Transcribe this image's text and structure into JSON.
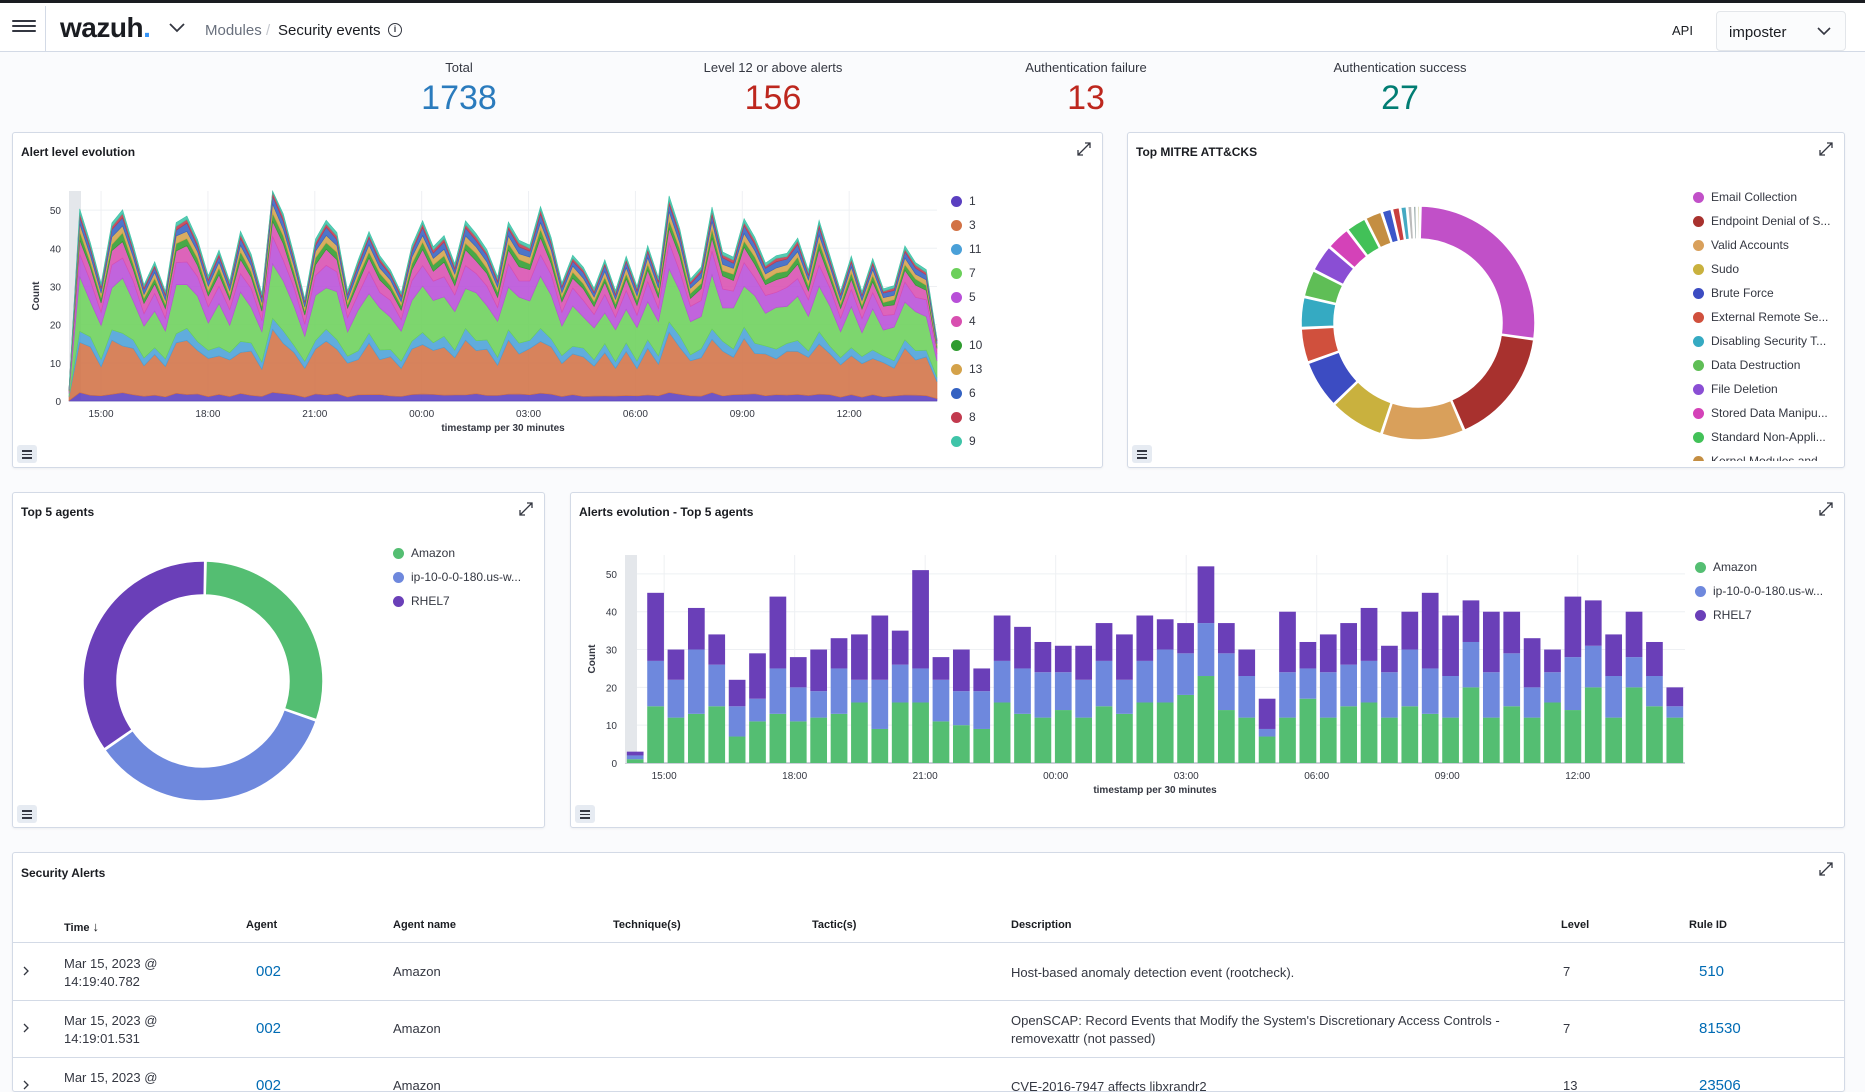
{
  "header": {
    "logo": "wazuh",
    "logo_dot": ".",
    "breadcrumb_modules": "Modules",
    "breadcrumb_sep": "/",
    "breadcrumb_current": "Security events",
    "info_glyph": "i",
    "api_label": "API",
    "api_value": "imposter"
  },
  "stats": [
    {
      "label": "Total",
      "value": "1738",
      "color": "#2a7bbd"
    },
    {
      "label": "Level 12 or above alerts",
      "value": "156",
      "color": "#bd271e"
    },
    {
      "label": "Authentication failure",
      "value": "13",
      "color": "#bd271e"
    },
    {
      "label": "Authentication success",
      "value": "27",
      "color": "#017d73"
    }
  ],
  "panels": {
    "alert_level": {
      "title": "Alert level evolution"
    },
    "mitre": {
      "title": "Top MITRE ATT&CKS"
    },
    "top_agents": {
      "title": "Top 5 agents"
    },
    "agents_evolution": {
      "title": "Alerts evolution - Top 5 agents"
    },
    "security_alerts": {
      "title": "Security Alerts"
    }
  },
  "chart_data": [
    {
      "type": "area",
      "title": "Alert level evolution",
      "xlabel": "timestamp per 30 minutes",
      "ylabel": "Count",
      "ylim": [
        0,
        55
      ],
      "x_ticks": [
        "15:00",
        "18:00",
        "21:00",
        "00:00",
        "03:00",
        "06:00",
        "09:00",
        "12:00"
      ],
      "y_ticks": [
        0,
        10,
        20,
        30,
        40,
        50
      ],
      "legend_position": "right",
      "series": [
        {
          "name": "1",
          "color": "#5a3fc0"
        },
        {
          "name": "3",
          "color": "#d27245"
        },
        {
          "name": "11",
          "color": "#4aa0d8"
        },
        {
          "name": "7",
          "color": "#6bd05a"
        },
        {
          "name": "5",
          "color": "#b84fd8"
        },
        {
          "name": "4",
          "color": "#d84fb0"
        },
        {
          "name": "10",
          "color": "#2f9c2f"
        },
        {
          "name": "13",
          "color": "#d4a24a"
        },
        {
          "name": "6",
          "color": "#3462c2"
        },
        {
          "name": "8",
          "color": "#c23a4e"
        },
        {
          "name": "9",
          "color": "#3fc4a8"
        }
      ],
      "totals": [
        3,
        48,
        40,
        30,
        44,
        50,
        38,
        30,
        34,
        28,
        44,
        47,
        40,
        32,
        38,
        30,
        44,
        36,
        28,
        52,
        48,
        36,
        26,
        40,
        46,
        42,
        28,
        36,
        42,
        38,
        32,
        28,
        38,
        46,
        38,
        42,
        34,
        46,
        42,
        38,
        32,
        44,
        42,
        38,
        50,
        40,
        30,
        36,
        34,
        28,
        36,
        28,
        36,
        30,
        38,
        32,
        50,
        44,
        30,
        34,
        48,
        38,
        36,
        46,
        42,
        34,
        38,
        36,
        42,
        32,
        46,
        36,
        28,
        36,
        28,
        36,
        28,
        30,
        38,
        36,
        32,
        16
      ]
    },
    {
      "type": "pie",
      "title": "Top MITRE ATT&CKS",
      "legend_position": "right",
      "slices": [
        {
          "name": "Email Collection",
          "value": 28,
          "color": "#c150c8"
        },
        {
          "name": "Endpoint Denial of S...",
          "value": 17,
          "color": "#a8312e"
        },
        {
          "name": "Valid Accounts",
          "value": 12,
          "color": "#d9a05b"
        },
        {
          "name": "Sudo",
          "value": 8,
          "color": "#c9b13e"
        },
        {
          "name": "Brute Force",
          "value": 7,
          "color": "#3c4cc2"
        },
        {
          "name": "External Remote Se...",
          "value": 5,
          "color": "#d0503d"
        },
        {
          "name": "Disabling Security T...",
          "value": 4.5,
          "color": "#35aac2"
        },
        {
          "name": "Data Destruction",
          "value": 4,
          "color": "#5fbe56"
        },
        {
          "name": "File Deletion",
          "value": 4,
          "color": "#8a4ed4"
        },
        {
          "name": "Stored Data Manipu...",
          "value": 3.5,
          "color": "#d442b8"
        },
        {
          "name": "Standard Non-Appli...",
          "value": 3,
          "color": "#42c158"
        },
        {
          "name": "Kernel Modules and...",
          "value": 2.5,
          "color": "#c48e42"
        },
        {
          "name": "",
          "value": 1.5,
          "color": "#3b57c9"
        },
        {
          "name": "",
          "value": 1.2,
          "color": "#c84040"
        },
        {
          "name": "",
          "value": 1,
          "color": "#44a9c2"
        },
        {
          "name": "",
          "value": 0.8,
          "color": "#bbb"
        },
        {
          "name": "",
          "value": 0.6,
          "color": "#9aa"
        },
        {
          "name": "",
          "value": 0.5,
          "color": "#cc9"
        }
      ]
    },
    {
      "type": "pie",
      "title": "Top 5 agents",
      "legend_position": "right",
      "slices": [
        {
          "name": "Amazon",
          "value": 30,
          "color": "#54be72"
        },
        {
          "name": "ip-10-0-0-180.us-w...",
          "value": 35,
          "color": "#6e88dd"
        },
        {
          "name": "RHEL7",
          "value": 35,
          "color": "#6a3fb8"
        }
      ]
    },
    {
      "type": "bar",
      "title": "Alerts evolution - Top 5 agents",
      "xlabel": "timestamp per 30 minutes",
      "ylabel": "Count",
      "ylim": [
        0,
        55
      ],
      "x_ticks": [
        "15:00",
        "18:00",
        "21:00",
        "00:00",
        "03:00",
        "06:00",
        "09:00",
        "12:00"
      ],
      "y_ticks": [
        0,
        10,
        20,
        30,
        40,
        50
      ],
      "legend_position": "right",
      "series": [
        {
          "name": "Amazon",
          "color": "#54be72",
          "values": [
            1,
            15,
            12,
            13,
            15,
            7,
            11,
            13,
            11,
            12,
            13,
            16,
            9,
            16,
            16,
            11,
            10,
            9,
            16,
            13,
            12,
            14,
            12,
            15,
            13,
            16,
            16,
            18,
            23,
            14,
            12,
            7,
            12,
            17,
            12,
            15,
            16,
            12,
            15,
            13,
            12,
            20,
            12,
            15,
            12,
            16,
            14,
            20,
            12,
            20,
            15,
            12
          ]
        },
        {
          "name": "ip-10-0-0-180.us-w...",
          "color": "#6e88dd",
          "values": [
            1,
            12,
            10,
            17,
            11,
            8,
            6,
            12,
            9,
            7,
            12,
            6,
            13,
            10,
            9,
            11,
            9,
            10,
            11,
            12,
            12,
            10,
            10,
            12,
            9,
            11,
            14,
            11,
            14,
            15,
            11,
            2,
            12,
            8,
            12,
            11,
            11,
            12,
            15,
            12,
            11,
            12,
            12,
            14,
            8,
            8,
            14,
            11,
            11,
            8,
            8,
            3
          ]
        },
        {
          "name": "RHEL7",
          "color": "#6a3fb8",
          "values": [
            1,
            18,
            8,
            11,
            8,
            7,
            12,
            19,
            8,
            11,
            8,
            12,
            17,
            9,
            26,
            6,
            11,
            6,
            12,
            11,
            8,
            7,
            9,
            10,
            12,
            12,
            8,
            8,
            15,
            8,
            7,
            8,
            16,
            7,
            10,
            11,
            14,
            7,
            10,
            20,
            16,
            11,
            16,
            11,
            13,
            6,
            16,
            12,
            11,
            12,
            9,
            5
          ]
        }
      ]
    }
  ],
  "alerts_table": {
    "columns": [
      "Time",
      "Agent",
      "Agent name",
      "Technique(s)",
      "Tactic(s)",
      "Description",
      "Level",
      "Rule ID"
    ],
    "sort_arrow": "↓",
    "rows": [
      {
        "time1": "Mar 15, 2023 @",
        "time2": "14:19:40.782",
        "agent": "002",
        "agent_name": "Amazon",
        "technique": "",
        "tactic": "",
        "desc1": "Host-based anomaly detection event (rootcheck).",
        "desc2": "",
        "level": "7",
        "rule_id": "510"
      },
      {
        "time1": "Mar 15, 2023 @",
        "time2": "14:19:01.531",
        "agent": "002",
        "agent_name": "Amazon",
        "technique": "",
        "tactic": "",
        "desc1": "OpenSCAP: Record Events that Modify the System's Discretionary Access Controls -",
        "desc2": "removexattr (not passed)",
        "level": "7",
        "rule_id": "81530"
      },
      {
        "time1": "Mar 15, 2023 @",
        "time2": "",
        "agent": "002",
        "agent_name": "Amazon",
        "technique": "",
        "tactic": "",
        "desc1": "CVE-2016-7947 affects libxrandr2",
        "desc2": "",
        "level": "13",
        "rule_id": "23506"
      }
    ]
  }
}
